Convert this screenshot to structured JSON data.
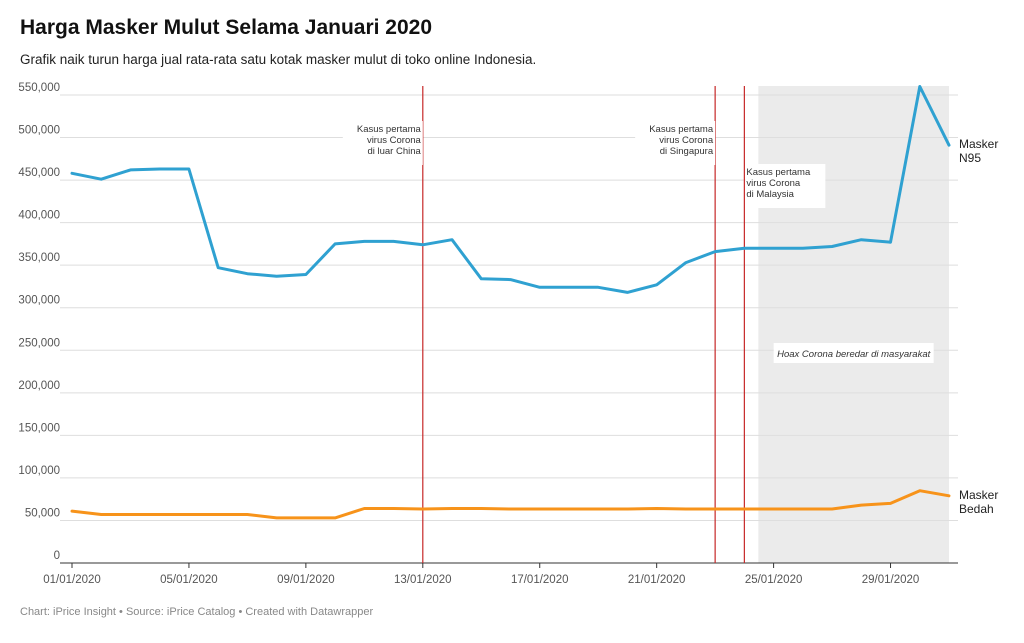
{
  "chart_data": {
    "type": "line",
    "title": "Harga Masker Mulut Selama Januari 2020",
    "subtitle": "Grafik naik turun harga jual rata-rata satu kotak masker mulut di toko online Indonesia.",
    "footer": "Chart: iPrice Insight • Source: iPrice Catalog • Created with Datawrapper",
    "x": [
      "01/01/2020",
      "02/01/2020",
      "03/01/2020",
      "04/01/2020",
      "05/01/2020",
      "06/01/2020",
      "07/01/2020",
      "08/01/2020",
      "09/01/2020",
      "10/01/2020",
      "11/01/2020",
      "12/01/2020",
      "13/01/2020",
      "14/01/2020",
      "15/01/2020",
      "16/01/2020",
      "17/01/2020",
      "18/01/2020",
      "19/01/2020",
      "20/01/2020",
      "21/01/2020",
      "22/01/2020",
      "23/01/2020",
      "24/01/2020",
      "25/01/2020",
      "26/01/2020",
      "27/01/2020",
      "28/01/2020",
      "29/01/2020",
      "30/01/2020",
      "31/01/2020"
    ],
    "x_ticks": [
      "01/01/2020",
      "05/01/2020",
      "09/01/2020",
      "13/01/2020",
      "17/01/2020",
      "21/01/2020",
      "25/01/2020",
      "29/01/2020"
    ],
    "ylim": [
      0,
      550000
    ],
    "y_ticks": [
      0,
      50000,
      100000,
      150000,
      200000,
      250000,
      300000,
      350000,
      400000,
      450000,
      500000,
      550000
    ],
    "y_tick_labels": [
      "0",
      "50,000",
      "100,000",
      "150,000",
      "200,000",
      "250,000",
      "300,000",
      "350,000",
      "400,000",
      "450,000",
      "500,000",
      "550,000"
    ],
    "grid": "horizontal",
    "series": [
      {
        "name": "Masker N95",
        "label_lines": [
          "Masker",
          "N95"
        ],
        "color": "#2fa1d1",
        "values": [
          458000,
          451000,
          462000,
          463000,
          463000,
          347000,
          340000,
          337000,
          339000,
          375000,
          378000,
          378000,
          374000,
          380000,
          334000,
          333000,
          324000,
          324000,
          324000,
          318000,
          327000,
          353000,
          366000,
          370000,
          370000,
          370000,
          372000,
          380000,
          377000,
          560000,
          491000
        ]
      },
      {
        "name": "Masker Bedah",
        "label_lines": [
          "Masker",
          "Bedah"
        ],
        "color": "#f7931a",
        "values": [
          61000,
          57000,
          57000,
          57000,
          57000,
          57000,
          57000,
          53000,
          53000,
          53000,
          64000,
          64000,
          63500,
          64000,
          64000,
          63500,
          63500,
          63500,
          63500,
          63500,
          64000,
          63500,
          63500,
          63500,
          63500,
          63500,
          63500,
          68000,
          70000,
          85000,
          79000
        ]
      }
    ],
    "markers": [
      {
        "date": "13/01/2020",
        "lines": [
          "Kasus pertama",
          "virus Corona",
          "di luar China"
        ],
        "color": "#c62828"
      },
      {
        "date": "23/01/2020",
        "lines": [
          "Kasus pertama",
          "virus Corona",
          "di Singapura"
        ],
        "color": "#c62828"
      },
      {
        "date": "24/01/2020",
        "lines": [
          "Kasus pertama",
          "virus Corona",
          "di Malaysia"
        ],
        "color": "#c62828"
      }
    ],
    "shaded_range": {
      "from": "24/01/2020",
      "to": "31/01/2020",
      "label": "Hoax Corona beredar di masyarakat",
      "color": "#ebebeb"
    }
  }
}
